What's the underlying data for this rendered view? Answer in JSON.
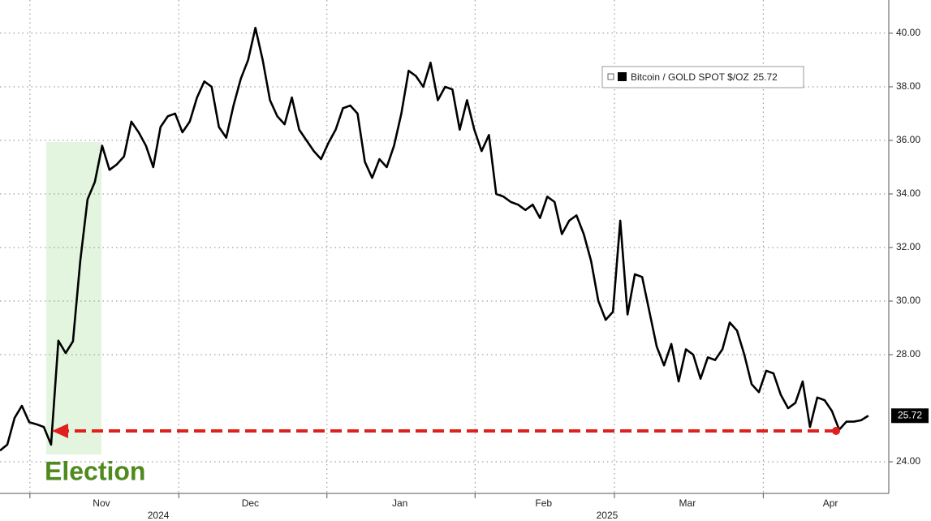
{
  "chart_data": {
    "type": "line",
    "series": [
      {
        "name": "Bitcoin / GOLD SPOT $/OZ",
        "color": "#000000",
        "values": [
          24.42,
          24.64,
          25.64,
          26.09,
          25.48,
          25.4,
          25.3,
          24.64,
          28.52,
          28.06,
          28.5,
          31.5,
          33.8,
          34.45,
          35.8,
          34.9,
          35.1,
          35.4,
          36.7,
          36.3,
          35.8,
          35.0,
          36.5,
          36.9,
          37.0,
          36.3,
          36.7,
          37.6,
          38.2,
          38.0,
          36.5,
          36.1,
          37.3,
          38.3,
          39.0,
          40.2,
          39.0,
          37.5,
          36.9,
          36.6,
          37.6,
          36.4,
          36.0,
          35.6,
          35.3,
          35.9,
          36.4,
          37.2,
          37.3,
          37.0,
          35.2,
          34.6,
          35.3,
          35.0,
          35.8,
          37.0,
          38.6,
          38.4,
          38.0,
          38.9,
          37.5,
          38.0,
          37.9,
          36.4,
          37.5,
          36.4,
          35.6,
          36.2,
          34.0,
          33.9,
          33.7,
          33.6,
          33.4,
          33.6,
          33.1,
          33.9,
          33.7,
          32.5,
          33.0,
          33.2,
          32.5,
          31.5,
          30.0,
          29.3,
          29.6,
          33.0,
          29.5,
          31.0,
          30.9,
          29.6,
          28.3,
          27.6,
          28.4,
          27.0,
          28.2,
          28.0,
          27.1,
          27.9,
          27.8,
          28.2,
          29.2,
          28.9,
          28.0,
          26.9,
          26.6,
          27.4,
          27.3,
          26.5,
          26.0,
          26.2,
          27.0,
          25.3,
          26.4,
          26.3,
          25.9,
          25.2,
          25.5,
          25.5,
          25.55,
          25.72
        ]
      }
    ],
    "xlim": [
      0,
      121.8
    ],
    "ylim": [
      22.82,
      41.24
    ],
    "xticks": [
      {
        "value": 13.9,
        "label": "Nov"
      },
      {
        "value": 34.3,
        "label": "Dec"
      },
      {
        "value": 54.8,
        "label": "Jan"
      },
      {
        "value": 74.5,
        "label": "Feb"
      },
      {
        "value": 94.2,
        "label": "Mar"
      },
      {
        "value": 113.8,
        "label": "Apr"
      }
    ],
    "year_ticks": [
      {
        "value": 21.7,
        "label": "2024"
      },
      {
        "value": 83.2,
        "label": "2025"
      }
    ],
    "xgrid": [
      4.1,
      24.5,
      44.8,
      65.1,
      84.2,
      104.6
    ],
    "yticks": [
      {
        "value": 24,
        "label": "24.00"
      },
      {
        "value": 28,
        "label": "28.00"
      },
      {
        "value": 30,
        "label": "30.00"
      },
      {
        "value": 32,
        "label": "32.00"
      },
      {
        "value": 34,
        "label": "34.00"
      },
      {
        "value": 36,
        "label": "36.00"
      },
      {
        "value": 38,
        "label": "38.00"
      },
      {
        "value": 40,
        "label": "40.00"
      }
    ],
    "grid": true,
    "annotation": "Election"
  }
}
